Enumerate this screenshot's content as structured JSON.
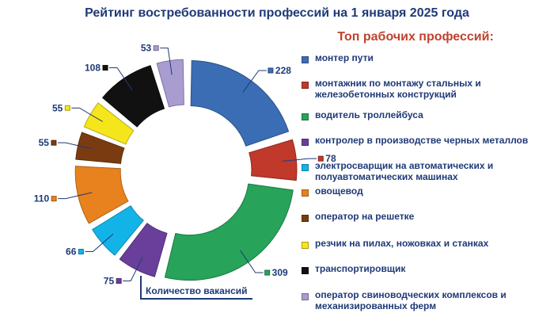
{
  "title": "Рейтинг востребованности профессий на 1 января 2025 года",
  "subtitle": "Топ рабочих профессий:",
  "vacancy_label": "Количество вакансий",
  "chart_data": {
    "type": "pie",
    "style": "donut, exploded slices",
    "title": "Рейтинг востребованности профессий на 1 января 2025 года",
    "subtitle": "Топ рабочих профессий:",
    "legend_position": "right",
    "slices": [
      {
        "label": "монтер пути",
        "value": 228,
        "color": "#3b6db5"
      },
      {
        "label": "монтажник по монтажу стальных и железобетонных конструкций",
        "value": 78,
        "color": "#c0392b"
      },
      {
        "label": "водитель троллейбуса",
        "value": 309,
        "color": "#27a35a"
      },
      {
        "label": "контролер в производстве черных металлов",
        "value": 75,
        "color": "#6a3f9c"
      },
      {
        "label": "электросварщик на автоматических и полуавтоматических машинах",
        "value": 66,
        "color": "#12b4e8"
      },
      {
        "label": "овощевод",
        "value": 110,
        "color": "#e8821e"
      },
      {
        "label": "оператор на решетке",
        "value": 55,
        "color": "#7a3b10"
      },
      {
        "label": "резчик на пилах, ножовках и станках",
        "value": 55,
        "color": "#f5e61c"
      },
      {
        "label": "транспортировщик",
        "value": 108,
        "color": "#111111"
      },
      {
        "label": "оператор свиноводческих комплексов и механизированных ферм",
        "value": 53,
        "color": "#a89cd0"
      }
    ]
  }
}
